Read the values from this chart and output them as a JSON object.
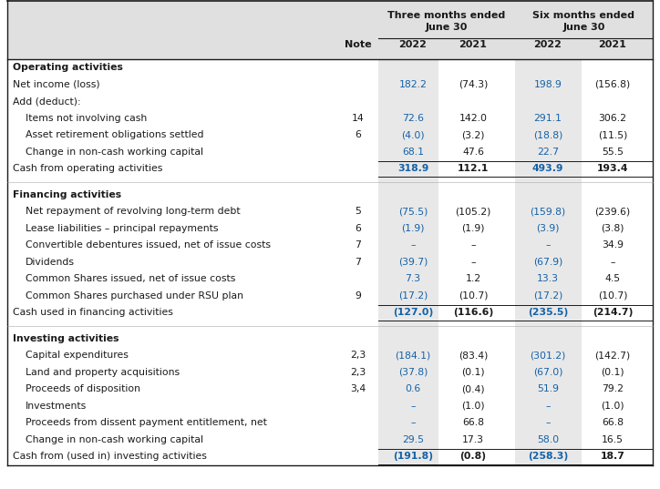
{
  "blue": "#1461A8",
  "black": "#1a1a1a",
  "header_bg": "#e0e0e0",
  "shade_bg": "#e8e8e8",
  "white": "#ffffff",
  "figsize": [
    7.24,
    5.37
  ],
  "dpi": 100,
  "rows": [
    {
      "label": "Operating activities",
      "note": "",
      "v1": "",
      "v2": "",
      "v3": "",
      "v4": "",
      "type": "section"
    },
    {
      "label": "Net income (loss)",
      "note": "",
      "v1": "182.2",
      "v2": "(74.3)",
      "v3": "198.9",
      "v4": "(156.8)",
      "type": "data",
      "indent": 0,
      "blue_cols": [
        1,
        3
      ]
    },
    {
      "label": "Add (deduct):",
      "note": "",
      "v1": "",
      "v2": "",
      "v3": "",
      "v4": "",
      "type": "label",
      "indent": 0
    },
    {
      "label": "Items not involving cash",
      "note": "14",
      "v1": "72.6",
      "v2": "142.0",
      "v3": "291.1",
      "v4": "306.2",
      "type": "data",
      "indent": 1,
      "blue_cols": [
        1,
        3
      ]
    },
    {
      "label": "Asset retirement obligations settled",
      "note": "6",
      "v1": "(4.0)",
      "v2": "(3.2)",
      "v3": "(18.8)",
      "v4": "(11.5)",
      "type": "data",
      "indent": 1,
      "blue_cols": [
        1,
        3
      ]
    },
    {
      "label": "Change in non-cash working capital",
      "note": "",
      "v1": "68.1",
      "v2": "47.6",
      "v3": "22.7",
      "v4": "55.5",
      "type": "data",
      "indent": 1,
      "blue_cols": [
        1,
        3
      ]
    },
    {
      "label": "Cash from operating activities",
      "note": "",
      "v1": "318.9",
      "v2": "112.1",
      "v3": "493.9",
      "v4": "193.4",
      "type": "total",
      "indent": 0,
      "blue_cols": [
        1,
        3
      ]
    },
    {
      "label": "",
      "note": "",
      "v1": "",
      "v2": "",
      "v3": "",
      "v4": "",
      "type": "spacer"
    },
    {
      "label": "Financing activities",
      "note": "",
      "v1": "",
      "v2": "",
      "v3": "",
      "v4": "",
      "type": "section"
    },
    {
      "label": "Net repayment of revolving long-term debt",
      "note": "5",
      "v1": "(75.5)",
      "v2": "(105.2)",
      "v3": "(159.8)",
      "v4": "(239.6)",
      "type": "data",
      "indent": 1,
      "blue_cols": [
        1,
        3
      ]
    },
    {
      "label": "Lease liabilities – principal repayments",
      "note": "6",
      "v1": "(1.9)",
      "v2": "(1.9)",
      "v3": "(3.9)",
      "v4": "(3.8)",
      "type": "data",
      "indent": 1,
      "blue_cols": [
        1,
        3
      ]
    },
    {
      "label": "Convertible debentures issued, net of issue costs",
      "note": "7",
      "v1": "–",
      "v2": "–",
      "v3": "–",
      "v4": "34.9",
      "type": "data",
      "indent": 1,
      "blue_cols": [
        1,
        3
      ]
    },
    {
      "label": "Dividends",
      "note": "7",
      "v1": "(39.7)",
      "v2": "–",
      "v3": "(67.9)",
      "v4": "–",
      "type": "data",
      "indent": 1,
      "blue_cols": [
        1,
        3
      ]
    },
    {
      "label": "Common Shares issued, net of issue costs",
      "note": "",
      "v1": "7.3",
      "v2": "1.2",
      "v3": "13.3",
      "v4": "4.5",
      "type": "data",
      "indent": 1,
      "blue_cols": [
        1,
        3
      ]
    },
    {
      "label": "Common Shares purchased under RSU plan",
      "note": "9",
      "v1": "(17.2)",
      "v2": "(10.7)",
      "v3": "(17.2)",
      "v4": "(10.7)",
      "type": "data",
      "indent": 1,
      "blue_cols": [
        1,
        3
      ]
    },
    {
      "label": "Cash used in financing activities",
      "note": "",
      "v1": "(127.0)",
      "v2": "(116.6)",
      "v3": "(235.5)",
      "v4": "(214.7)",
      "type": "total",
      "indent": 0,
      "blue_cols": [
        1,
        3
      ]
    },
    {
      "label": "",
      "note": "",
      "v1": "",
      "v2": "",
      "v3": "",
      "v4": "",
      "type": "spacer"
    },
    {
      "label": "Investing activities",
      "note": "",
      "v1": "",
      "v2": "",
      "v3": "",
      "v4": "",
      "type": "section"
    },
    {
      "label": "Capital expenditures",
      "note": "2,3",
      "v1": "(184.1)",
      "v2": "(83.4)",
      "v3": "(301.2)",
      "v4": "(142.7)",
      "type": "data",
      "indent": 1,
      "blue_cols": [
        1,
        3
      ]
    },
    {
      "label": "Land and property acquisitions",
      "note": "2,3",
      "v1": "(37.8)",
      "v2": "(0.1)",
      "v3": "(67.0)",
      "v4": "(0.1)",
      "type": "data",
      "indent": 1,
      "blue_cols": [
        1,
        3
      ]
    },
    {
      "label": "Proceeds of disposition",
      "note": "3,4",
      "v1": "0.6",
      "v2": "(0.4)",
      "v3": "51.9",
      "v4": "79.2",
      "type": "data",
      "indent": 1,
      "blue_cols": [
        1,
        3
      ]
    },
    {
      "label": "Investments",
      "note": "",
      "v1": "–",
      "v2": "(1.0)",
      "v3": "–",
      "v4": "(1.0)",
      "type": "data",
      "indent": 1,
      "blue_cols": [
        1,
        3
      ]
    },
    {
      "label": "Proceeds from dissent payment entitlement, net",
      "note": "",
      "v1": "–",
      "v2": "66.8",
      "v3": "–",
      "v4": "66.8",
      "type": "data",
      "indent": 1,
      "blue_cols": [
        1,
        3
      ]
    },
    {
      "label": "Change in non-cash working capital",
      "note": "",
      "v1": "29.5",
      "v2": "17.3",
      "v3": "58.0",
      "v4": "16.5",
      "type": "data",
      "indent": 1,
      "blue_cols": [
        1,
        3
      ]
    },
    {
      "label": "Cash from (used in) investing activities",
      "note": "",
      "v1": "(191.8)",
      "v2": "(0.8)",
      "v3": "(258.3)",
      "v4": "18.7",
      "type": "total",
      "indent": 0,
      "blue_cols": [
        1,
        3
      ]
    }
  ]
}
